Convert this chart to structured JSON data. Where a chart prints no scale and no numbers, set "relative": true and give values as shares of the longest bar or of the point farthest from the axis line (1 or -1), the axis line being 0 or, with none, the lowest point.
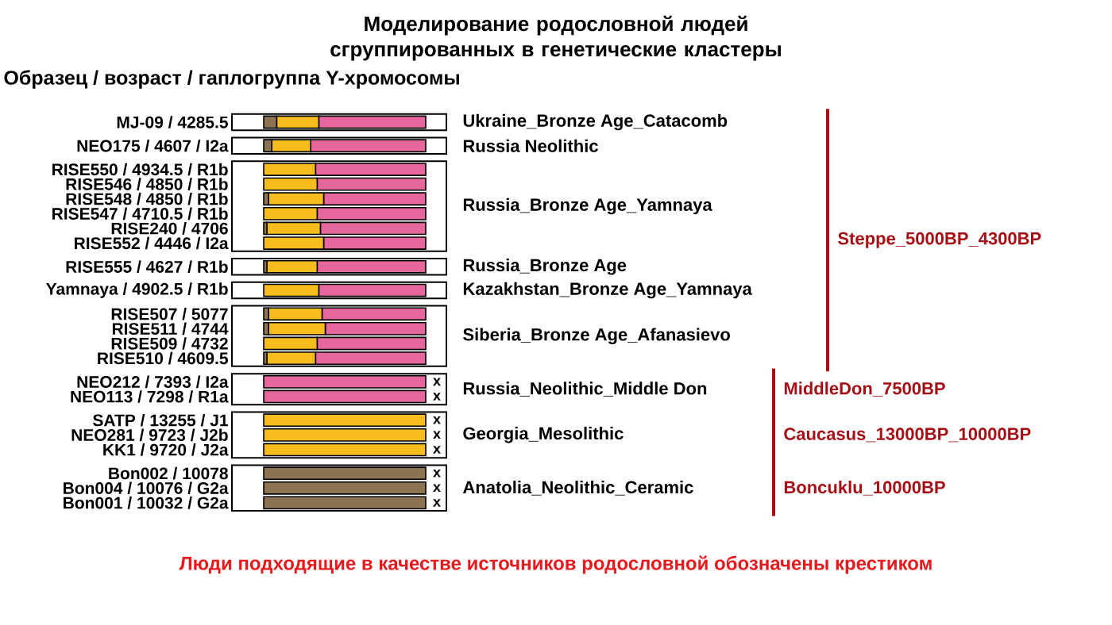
{
  "chart_data": {
    "type": "bar",
    "orientation": "horizontal",
    "stacked": true,
    "relative": true,
    "title": "Моделирование родословной людей сгруппированных в генетические кластеры",
    "subtitle": "Образец / возраст / гаплогруппа Y-хромосомы",
    "categories": [
      "MJ-09 / 4285.5",
      "NEO175 / 4607 / I2a",
      "RISE550 / 4934.5 / R1b",
      "RISE546 / 4850 / R1b",
      "RISE548 / 4850 / R1b",
      "RISE547 / 4710.5 / R1b",
      "RISE240 / 4706",
      "RISE552 / 4446 / I2a",
      "RISE555 / 4627 / R1b",
      "Yamnaya / 4902.5 / R1b",
      "RISE507 / 5077",
      "RISE511 / 4744",
      "RISE509 / 4732",
      "RISE510 / 4609.5",
      "NEO212 / 7393 / I2a",
      "NEO113 / 7298 / R1a",
      "SATP / 13255 / J1",
      "NEO281 / 9723 / J2b",
      "KK1 / 9720 / J2a",
      "Bon002 / 10078",
      "Bon004 / 10076 / G2a",
      "Bon001 / 10032 / G2a"
    ],
    "series": [
      {
        "color": "#8c7352",
        "values": [
          0.08,
          0.05,
          0,
          0,
          0.03,
          0,
          0.02,
          0,
          0.02,
          0,
          0.03,
          0.03,
          0,
          0.02,
          0,
          0,
          0,
          0,
          0,
          1,
          1,
          1
        ]
      },
      {
        "color": "#f6bd1d",
        "values": [
          0.26,
          0.24,
          0.32,
          0.33,
          0.34,
          0.33,
          0.33,
          0.37,
          0.31,
          0.34,
          0.33,
          0.35,
          0.33,
          0.3,
          0,
          0,
          1,
          1,
          1,
          0,
          0,
          0
        ]
      },
      {
        "color": "#e6669e",
        "values": [
          0.66,
          0.71,
          0.68,
          0.67,
          0.63,
          0.67,
          0.65,
          0.63,
          0.67,
          0.66,
          0.64,
          0.62,
          0.67,
          0.68,
          1,
          1,
          0,
          0,
          0,
          0,
          0,
          0
        ]
      }
    ],
    "annotations": [
      "Ukraine_Bronze Age_Catacomb",
      "Russia Neolithic",
      "Russia_Bronze Age_Yamnaya",
      "Russia_Bronze Age",
      "Kazakhstan_Bronze Age_Yamnaya",
      "Siberia_Bronze Age_Afanasievo",
      "Russia_Neolithic_Middle Don",
      "Georgia_Mesolithic",
      "Anatolia_Neolithic_Ceramic",
      "Steppe_5000BP_4300BP",
      "MiddleDon_7500BP",
      "Caucasus_13000BP_10000BP",
      "Boncuklu_10000BP",
      "x",
      "x",
      "x",
      "x",
      "x",
      "x",
      "x",
      "x",
      "Люди подходящие в качестве источников родословной обозначены крестиком"
    ]
  }
}
